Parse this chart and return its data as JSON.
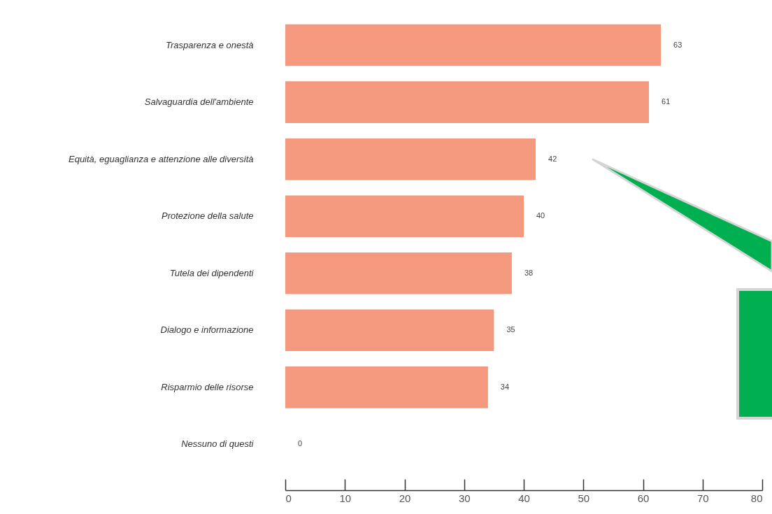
{
  "chart_data": {
    "type": "bar",
    "orientation": "horizontal",
    "categories": [
      "Trasparenza e onestà",
      "Salvaguardia dell'ambiente",
      "Equità, eguaglianza e attenzione alle diversità",
      "Protezione della salute",
      "Tutela dei dipendenti",
      "Dialogo e informazione",
      "Risparmio delle risorse",
      "Nessuno di questi"
    ],
    "values": [
      63,
      61,
      42,
      40,
      38,
      35,
      34,
      0
    ],
    "color": "#f4997e",
    "xlim": [
      0,
      80
    ],
    "xticks": [
      0,
      10,
      20,
      30,
      40,
      50,
      60,
      70,
      80
    ],
    "grid": false,
    "data_labels": true
  }
}
